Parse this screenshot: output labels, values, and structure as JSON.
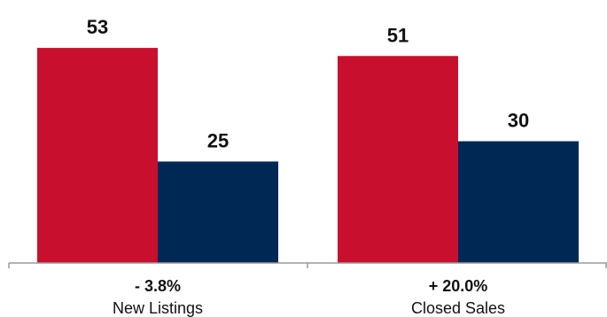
{
  "chart_data": {
    "type": "bar",
    "categories": [
      "New Listings",
      "Closed Sales"
    ],
    "change_labels": [
      "- 3.8%",
      "+ 20.0%"
    ],
    "series": [
      {
        "values": [
          53,
          51
        ],
        "color": "#c8102e"
      },
      {
        "values": [
          25,
          30
        ],
        "color": "#002855"
      }
    ],
    "ylim": [
      0,
      60
    ],
    "grid": false,
    "legend": "none",
    "title": "",
    "xlabel": "",
    "ylabel": ""
  }
}
